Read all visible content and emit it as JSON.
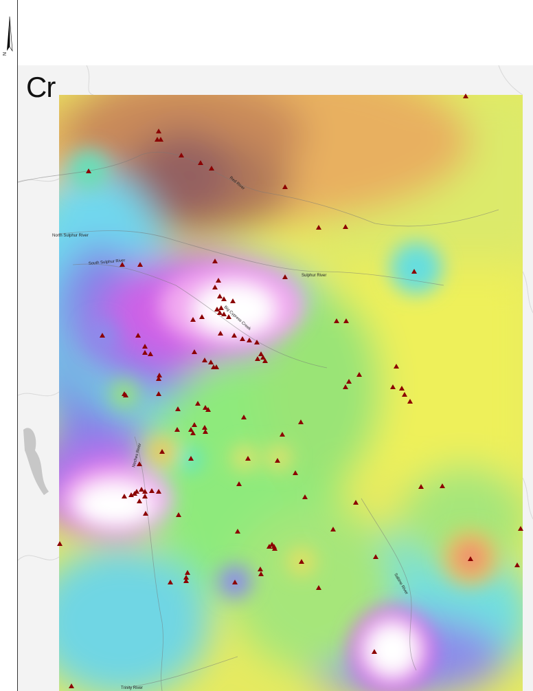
{
  "panel": {
    "label": "Cr"
  },
  "north_arrow": {
    "letter": "N"
  },
  "rivers": [
    {
      "name": "Red River"
    },
    {
      "name": "North Sulphur River"
    },
    {
      "name": "South Sulphur River"
    },
    {
      "name": "Sulphur River"
    },
    {
      "name": "Big Cypress Creek"
    },
    {
      "name": "Neches River"
    },
    {
      "name": "Sabine River"
    },
    {
      "name": "Trinity River"
    }
  ],
  "colors": {
    "low": "#8a5a5a",
    "mid_low": "#e8a15a",
    "mid": "#f4f04a",
    "green": "#7fe28a",
    "cyan": "#5ee6e6",
    "blue": "#8890e8",
    "magenta": "#e060e8",
    "high": "#ffffff",
    "site_marker": "#8b0000",
    "background": "#f2f2f2"
  },
  "site_marker_icon": "triangle-icon"
}
